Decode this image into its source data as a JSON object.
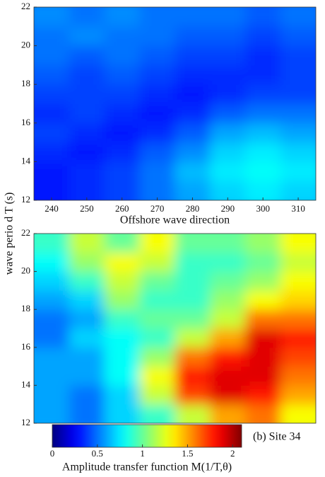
{
  "y_label": "wave perio d T (s)",
  "colorbar": {
    "label": "Amplitude transfer function M(1/T,θ)",
    "colormap": "jet",
    "lim": [
      0,
      2.1
    ],
    "ticks": [
      0,
      0.5,
      1,
      1.5,
      2
    ]
  },
  "chart_data": [
    {
      "type": "heatmap",
      "x_label": "Offshore wave direction",
      "x": [
        240,
        250,
        260,
        270,
        280,
        290,
        300,
        310
      ],
      "y": [
        12.5,
        13.5,
        14.5,
        15.5,
        16.5,
        17.5,
        18.5,
        19.5,
        20.5,
        21.5
      ],
      "xlim": [
        235,
        315
      ],
      "xticks": [
        240,
        250,
        260,
        270,
        280,
        290,
        300,
        310
      ],
      "ylim": [
        12,
        22
      ],
      "yticks": [
        12,
        14,
        16,
        18,
        20,
        22
      ],
      "z": [
        [
          0.3,
          0.35,
          0.4,
          0.5,
          0.6,
          0.7,
          0.75,
          0.7
        ],
        [
          0.3,
          0.35,
          0.4,
          0.5,
          0.65,
          0.75,
          0.8,
          0.75
        ],
        [
          0.35,
          0.3,
          0.35,
          0.45,
          0.55,
          0.7,
          0.75,
          0.7
        ],
        [
          0.4,
          0.35,
          0.3,
          0.35,
          0.45,
          0.6,
          0.65,
          0.6
        ],
        [
          0.35,
          0.4,
          0.35,
          0.3,
          0.35,
          0.45,
          0.5,
          0.5
        ],
        [
          0.4,
          0.4,
          0.4,
          0.35,
          0.3,
          0.35,
          0.4,
          0.4
        ],
        [
          0.45,
          0.4,
          0.45,
          0.4,
          0.35,
          0.35,
          0.35,
          0.4
        ],
        [
          0.5,
          0.45,
          0.5,
          0.45,
          0.4,
          0.4,
          0.35,
          0.4
        ],
        [
          0.5,
          0.55,
          0.5,
          0.5,
          0.45,
          0.45,
          0.4,
          0.45
        ],
        [
          0.55,
          0.5,
          0.55,
          0.5,
          0.5,
          0.5,
          0.45,
          0.5
        ]
      ]
    },
    {
      "type": "heatmap",
      "annotation": "(b)  Site 34",
      "x": [
        240,
        250,
        260,
        270,
        280,
        290,
        300,
        310
      ],
      "y": [
        12.5,
        13.5,
        14.5,
        15.5,
        16.5,
        17.5,
        18.5,
        19.5,
        20.5,
        21.5
      ],
      "xlim": [
        235,
        315
      ],
      "ylim": [
        12,
        22
      ],
      "yticks": [
        12,
        14,
        16,
        18,
        20,
        22
      ],
      "z": [
        [
          0.6,
          0.5,
          0.7,
          0.9,
          1.2,
          1.5,
          1.6,
          1.3
        ],
        [
          0.6,
          0.5,
          0.7,
          1.2,
          1.7,
          1.9,
          1.8,
          1.5
        ],
        [
          0.6,
          0.6,
          0.8,
          1.3,
          1.8,
          1.9,
          1.9,
          1.6
        ],
        [
          0.6,
          0.6,
          0.8,
          1.1,
          1.6,
          1.8,
          1.9,
          1.7
        ],
        [
          0.5,
          0.7,
          0.8,
          0.9,
          1.2,
          1.5,
          1.9,
          1.8
        ],
        [
          0.5,
          0.6,
          0.9,
          1.0,
          1.0,
          1.2,
          1.6,
          1.6
        ],
        [
          0.6,
          0.7,
          1.1,
          0.9,
          0.9,
          1.1,
          1.3,
          1.4
        ],
        [
          0.7,
          0.9,
          1.2,
          1.0,
          0.9,
          1.0,
          1.1,
          1.3
        ],
        [
          0.8,
          1.1,
          1.3,
          1.2,
          0.9,
          0.9,
          1.0,
          1.2
        ],
        [
          0.9,
          1.2,
          1.0,
          1.3,
          1.0,
          1.0,
          1.1,
          1.3
        ]
      ]
    }
  ]
}
